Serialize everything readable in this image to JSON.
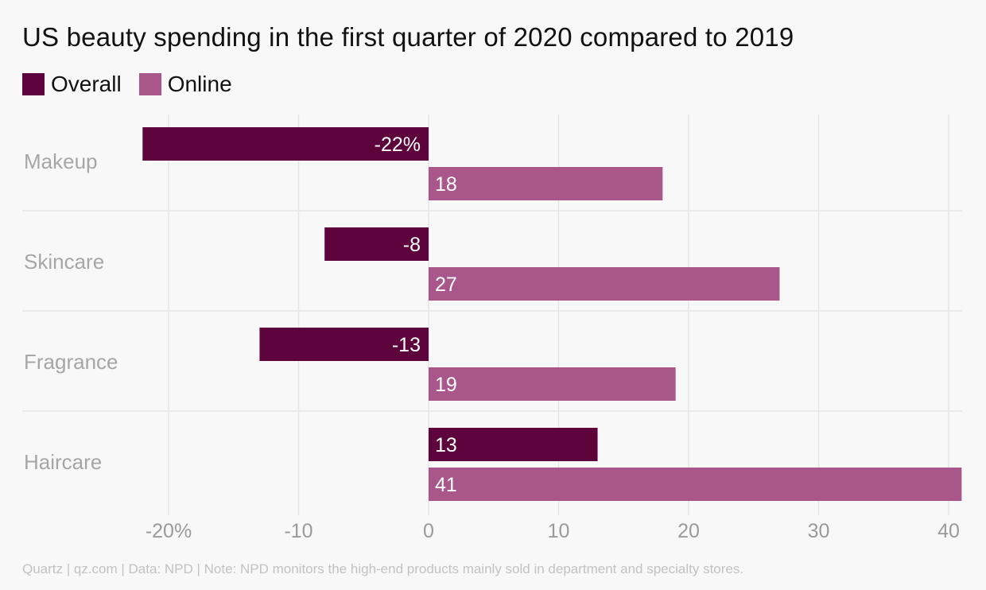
{
  "chart_data": {
    "type": "bar",
    "orientation": "horizontal",
    "title": "US beauty spending in the first quarter of 2020 compared to 2019",
    "categories": [
      "Makeup",
      "Skincare",
      "Fragrance",
      "Haircare"
    ],
    "series": [
      {
        "name": "Overall",
        "color": "#5c043b",
        "values": [
          -22,
          -8,
          -13,
          13
        ],
        "labels": [
          "-22%",
          "-8",
          "-13",
          "13"
        ]
      },
      {
        "name": "Online",
        "color": "#a9578a",
        "values": [
          18,
          27,
          19,
          41
        ],
        "labels": [
          "18",
          "27",
          "19",
          "41"
        ]
      }
    ],
    "xlim": [
      -22.5,
      41.2
    ],
    "xticks": [
      -20,
      -10,
      0,
      10,
      20,
      30,
      40
    ],
    "xtick_labels": [
      "-20%",
      "-10",
      "0",
      "10",
      "20",
      "30",
      "40"
    ],
    "grid": true,
    "legend": "top-left"
  },
  "footer": "Quartz | qz.com | Data: NPD | Note: NPD monitors the high-end products mainly sold in department and specialty stores.",
  "colors": {
    "overall": "#5c043b",
    "online": "#a9578a",
    "grid": "#e6e6e6",
    "axis_text": "#9a9a9a"
  }
}
